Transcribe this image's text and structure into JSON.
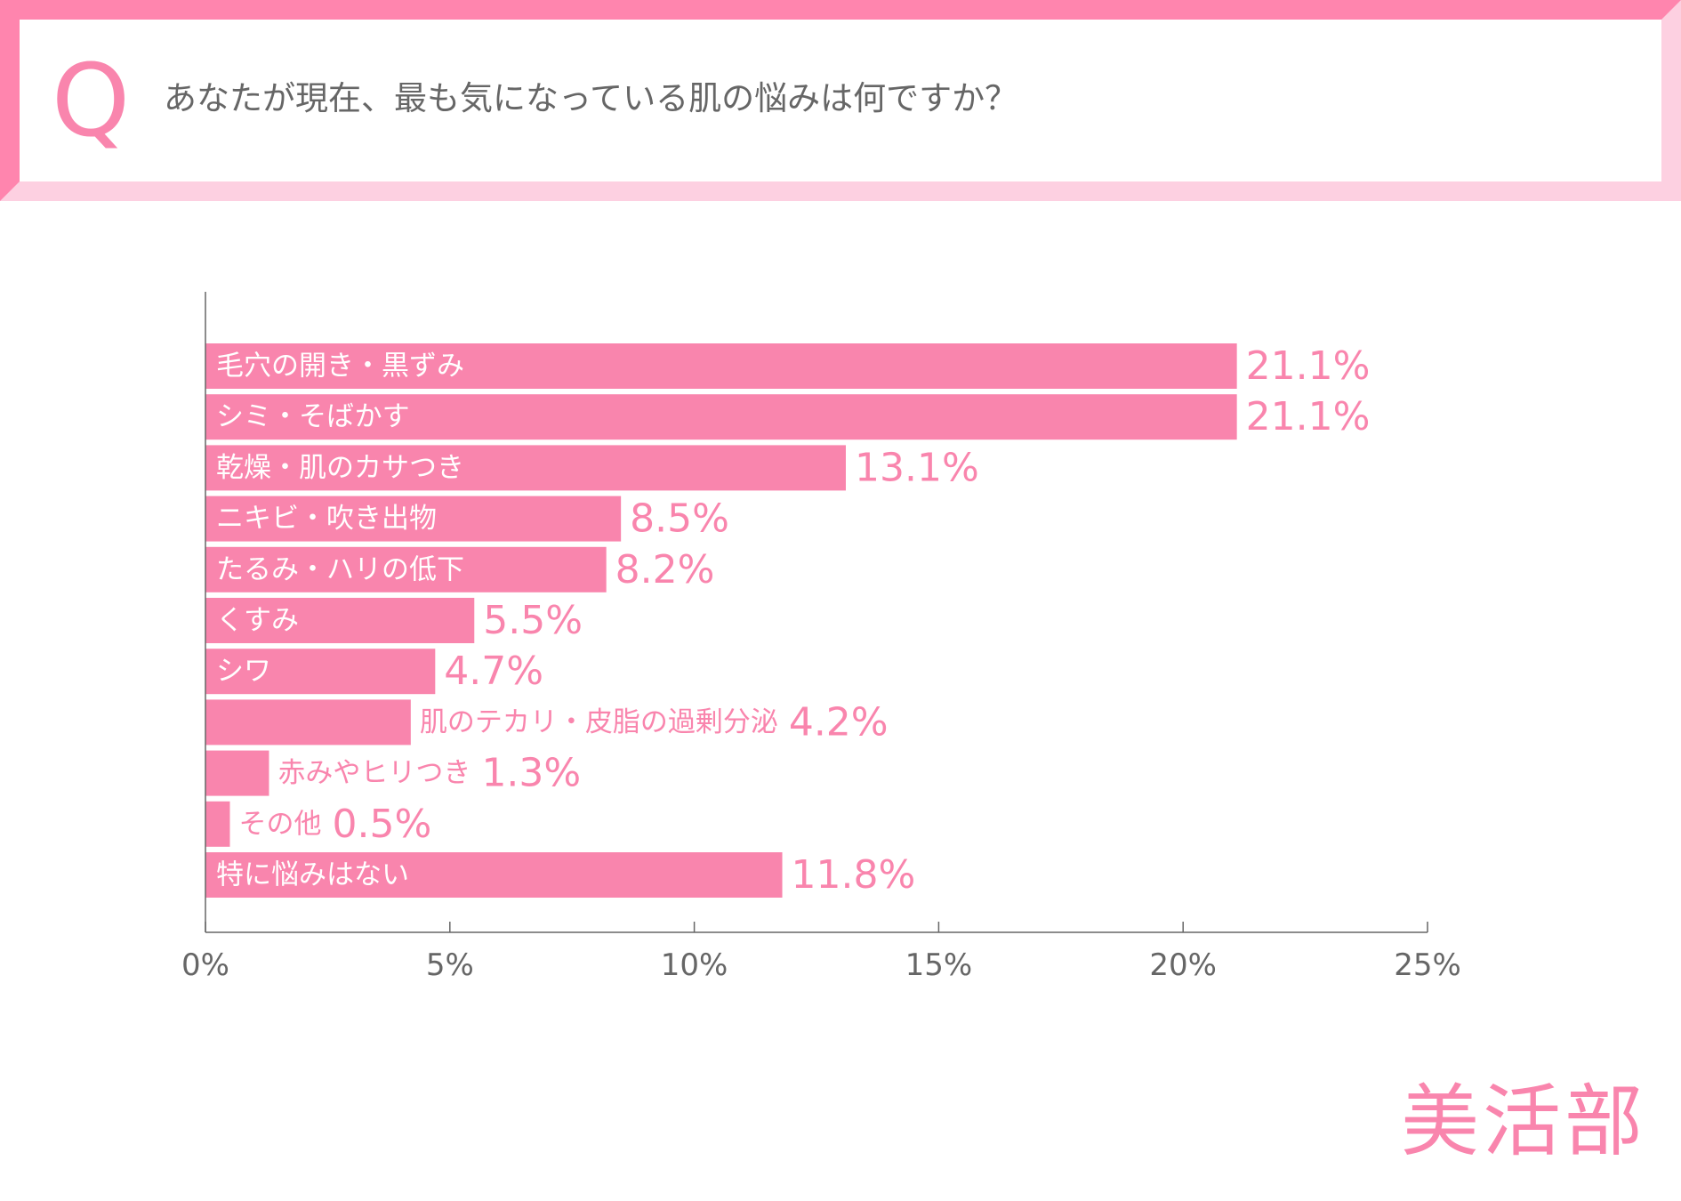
{
  "question": {
    "mark": "Q",
    "text": "あなたが現在、最も気になっている肌の悩みは何ですか？"
  },
  "brand": {
    "logo_text": "美活部"
  },
  "colors": {
    "accent": "#f985ad",
    "accent_light": "#fdd0e1",
    "bar": "#f985ad",
    "text_gray": "#666666",
    "axis": "#666666"
  },
  "chart_data": {
    "type": "bar",
    "orientation": "horizontal",
    "categories": [
      "毛穴の開き・黒ずみ",
      "シミ・そばかす",
      "乾燥・肌のカサつき",
      "ニキビ・吹き出物",
      "たるみ・ハリの低下",
      "くすみ",
      "シワ",
      "肌のテカリ・皮脂の過剰分泌",
      "赤みやヒリつき",
      "その他",
      "特に悩みはない"
    ],
    "values": [
      21.1,
      21.1,
      13.1,
      8.5,
      8.2,
      5.5,
      4.7,
      4.2,
      1.3,
      0.5,
      11.8
    ],
    "value_labels": [
      "21.1%",
      "21.1%",
      "13.1%",
      "8.5%",
      "8.2%",
      "5.5%",
      "4.7%",
      "4.2%",
      "1.3%",
      "0.5%",
      "11.8%"
    ],
    "xlim": [
      0,
      25
    ],
    "xticks": [
      0,
      5,
      10,
      15,
      20,
      25
    ],
    "xtick_labels": [
      "0%",
      "5%",
      "10%",
      "15%",
      "20%",
      "25%"
    ],
    "grid": false,
    "legend": "none"
  }
}
